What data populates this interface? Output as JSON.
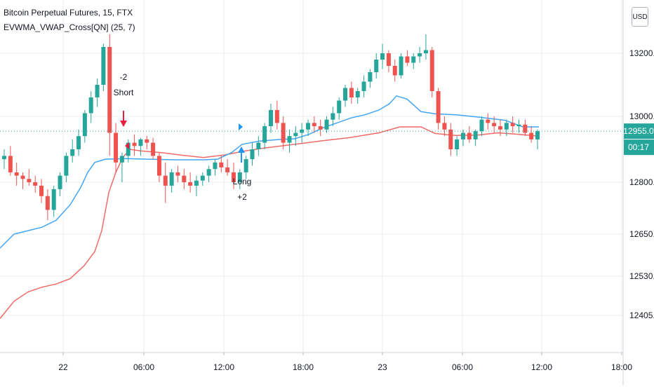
{
  "header": {
    "symbol_line": "Bitcoin Perpetual Futures, 15, FTX",
    "indicator_line": "EVWMA_VWAP_Cross[QN] (25, 7)"
  },
  "price_axis": {
    "currency_button": "USD",
    "last_price": "12955.0",
    "countdown": "00:17"
  },
  "annotations": {
    "short_signal": {
      "lines": [
        "-2",
        "Short"
      ],
      "color": "#e91e3e"
    },
    "long_signal": {
      "lines": [
        "Long",
        "+2"
      ],
      "color": "#2196f3"
    }
  },
  "colors": {
    "candle_up": "#26a69a",
    "candle_down": "#ef5350",
    "evwma_line": "#42a5f5",
    "vwap_line": "#f06a66",
    "last_price_badge": "#26a69a",
    "grid": "#e9ecf0"
  },
  "chart_data": {
    "type": "candlestick",
    "title": "Bitcoin Perpetual Futures, 15, FTX",
    "x_tick_labels": [
      "22",
      "06:00",
      "12:00",
      "18:00",
      "23",
      "06:00",
      "12:00",
      "18:00"
    ],
    "y_tick_labels": [
      "13200.0",
      "13000.0",
      "12800.0",
      "12650.0",
      "12530.0",
      "12405.0"
    ],
    "y_tick_values": [
      13200,
      13000,
      12800,
      12650,
      12530,
      12405
    ],
    "last_price": 12955,
    "grid": true,
    "series": [
      {
        "name": "EVWMA",
        "type": "line",
        "points": [
          [
            0,
            12610
          ],
          [
            20,
            12650
          ],
          [
            40,
            12660
          ],
          [
            60,
            12670
          ],
          [
            80,
            12690
          ],
          [
            100,
            12735
          ],
          [
            115,
            12785
          ],
          [
            125,
            12830
          ],
          [
            135,
            12860
          ],
          [
            150,
            12870
          ],
          [
            180,
            12872
          ],
          [
            210,
            12870
          ],
          [
            250,
            12868
          ],
          [
            290,
            12868
          ],
          [
            310,
            12870
          ],
          [
            330,
            12890
          ],
          [
            345,
            12915
          ],
          [
            370,
            12925
          ],
          [
            400,
            12930
          ],
          [
            420,
            12932
          ],
          [
            440,
            12945
          ],
          [
            460,
            12965
          ],
          [
            480,
            12980
          ],
          [
            500,
            12995
          ],
          [
            520,
            13005
          ],
          [
            540,
            13020
          ],
          [
            555,
            13040
          ],
          [
            565,
            13065
          ],
          [
            580,
            13055
          ],
          [
            600,
            13015
          ],
          [
            620,
            13008
          ],
          [
            650,
            13005
          ],
          [
            680,
            12998
          ],
          [
            700,
            12993
          ],
          [
            720,
            12988
          ],
          [
            745,
            12968
          ],
          [
            768,
            12968
          ]
        ]
      },
      {
        "name": "VWAP",
        "type": "line",
        "points": [
          [
            0,
            12395
          ],
          [
            20,
            12450
          ],
          [
            40,
            12480
          ],
          [
            60,
            12495
          ],
          [
            80,
            12505
          ],
          [
            100,
            12522
          ],
          [
            120,
            12560
          ],
          [
            135,
            12600
          ],
          [
            145,
            12660
          ],
          [
            155,
            12770
          ],
          [
            165,
            12830
          ],
          [
            175,
            12875
          ],
          [
            185,
            12900
          ],
          [
            200,
            12895
          ],
          [
            230,
            12890
          ],
          [
            260,
            12882
          ],
          [
            290,
            12875
          ],
          [
            320,
            12883
          ],
          [
            350,
            12895
          ],
          [
            380,
            12905
          ],
          [
            420,
            12915
          ],
          [
            460,
            12926
          ],
          [
            500,
            12936
          ],
          [
            540,
            12950
          ],
          [
            570,
            12968
          ],
          [
            600,
            12968
          ],
          [
            620,
            12948
          ],
          [
            650,
            12942
          ],
          [
            680,
            12943
          ],
          [
            710,
            12950
          ],
          [
            740,
            12945
          ],
          [
            768,
            12940
          ]
        ]
      },
      {
        "name": "Price",
        "type": "candlestick",
        "open_high_low_close": [
          [
            12870,
            12900,
            12840,
            12880
          ],
          [
            12880,
            12910,
            12820,
            12830
          ],
          [
            12830,
            12860,
            12790,
            12820
          ],
          [
            12820,
            12830,
            12780,
            12810
          ],
          [
            12810,
            12840,
            12790,
            12800
          ],
          [
            12800,
            12820,
            12770,
            12790
          ],
          [
            12790,
            12810,
            12740,
            12760
          ],
          [
            12760,
            12780,
            12690,
            12720
          ],
          [
            12720,
            12790,
            12700,
            12780
          ],
          [
            12780,
            12830,
            12760,
            12820
          ],
          [
            12820,
            12890,
            12800,
            12880
          ],
          [
            12880,
            12930,
            12860,
            12900
          ],
          [
            12900,
            12960,
            12880,
            12940
          ],
          [
            12940,
            13020,
            12920,
            13010
          ],
          [
            13010,
            13080,
            12980,
            13060
          ],
          [
            13060,
            13120,
            13030,
            13100
          ],
          [
            13100,
            13230,
            13080,
            13220
          ],
          [
            13220,
            13260,
            12880,
            12950
          ],
          [
            12950,
            12980,
            12830,
            12860
          ],
          [
            12860,
            12890,
            12800,
            12880
          ],
          [
            12880,
            12930,
            12860,
            12920
          ],
          [
            12920,
            12945,
            12880,
            12910
          ],
          [
            12910,
            12935,
            12880,
            12930
          ],
          [
            12930,
            12940,
            12900,
            12920
          ],
          [
            12920,
            12935,
            12870,
            12880
          ],
          [
            12880,
            12890,
            12800,
            12820
          ],
          [
            12820,
            12860,
            12740,
            12790
          ],
          [
            12790,
            12840,
            12770,
            12830
          ],
          [
            12830,
            12850,
            12800,
            12820
          ],
          [
            12820,
            12840,
            12780,
            12800
          ],
          [
            12800,
            12830,
            12770,
            12790
          ],
          [
            12790,
            12820,
            12760,
            12805
          ],
          [
            12805,
            12830,
            12790,
            12820
          ],
          [
            12820,
            12850,
            12800,
            12840
          ],
          [
            12840,
            12870,
            12820,
            12860
          ],
          [
            12860,
            12880,
            12830,
            12845
          ],
          [
            12845,
            12870,
            12820,
            12830
          ],
          [
            12830,
            12860,
            12780,
            12800
          ],
          [
            12800,
            12840,
            12780,
            12830
          ],
          [
            12830,
            12880,
            12810,
            12870
          ],
          [
            12870,
            12920,
            12850,
            12900
          ],
          [
            12900,
            12940,
            12880,
            12920
          ],
          [
            12920,
            12980,
            12900,
            12970
          ],
          [
            12970,
            13040,
            12950,
            13020
          ],
          [
            13020,
            13050,
            12960,
            12980
          ],
          [
            12980,
            13000,
            12900,
            12920
          ],
          [
            12920,
            12960,
            12890,
            12940
          ],
          [
            12940,
            12970,
            12910,
            12950
          ],
          [
            12950,
            12980,
            12920,
            12960
          ],
          [
            12960,
            12990,
            12940,
            12980
          ],
          [
            12980,
            13000,
            12950,
            12970
          ],
          [
            12970,
            12990,
            12940,
            12960
          ],
          [
            12960,
            13000,
            12950,
            12990
          ],
          [
            12990,
            13030,
            12970,
            13010
          ],
          [
            13010,
            13060,
            12990,
            13050
          ],
          [
            13050,
            13100,
            13030,
            13090
          ],
          [
            13090,
            13110,
            13040,
            13060
          ],
          [
            13060,
            13090,
            13040,
            13080
          ],
          [
            13080,
            13130,
            13060,
            13110
          ],
          [
            13110,
            13150,
            13090,
            13140
          ],
          [
            13140,
            13200,
            13120,
            13180
          ],
          [
            13180,
            13230,
            13150,
            13200
          ],
          [
            13200,
            13210,
            13140,
            13160
          ],
          [
            13160,
            13180,
            13110,
            13130
          ],
          [
            13130,
            13200,
            13120,
            13190
          ],
          [
            13190,
            13210,
            13160,
            13170
          ],
          [
            13170,
            13200,
            13150,
            13190
          ],
          [
            13190,
            13220,
            13170,
            13200
          ],
          [
            13200,
            13260,
            13180,
            13210
          ],
          [
            13210,
            13220,
            13060,
            13080
          ],
          [
            13080,
            13090,
            12960,
            12980
          ],
          [
            12980,
            13000,
            12940,
            12960
          ],
          [
            12960,
            12980,
            12880,
            12900
          ],
          [
            12900,
            12940,
            12880,
            12930
          ],
          [
            12930,
            12960,
            12910,
            12950
          ],
          [
            12950,
            12970,
            12920,
            12930
          ],
          [
            12930,
            12960,
            12910,
            12955
          ],
          [
            12955,
            13000,
            12940,
            12990
          ],
          [
            12990,
            13010,
            12960,
            12980
          ],
          [
            12980,
            13000,
            12950,
            12970
          ],
          [
            12970,
            12990,
            12940,
            12960
          ],
          [
            12960,
            12990,
            12940,
            12980
          ],
          [
            12980,
            13000,
            12950,
            12970
          ],
          [
            12970,
            12990,
            12950,
            12975
          ],
          [
            12975,
            12990,
            12940,
            12950
          ],
          [
            12950,
            12970,
            12920,
            12930
          ],
          [
            12930,
            12960,
            12900,
            12955
          ]
        ]
      }
    ]
  }
}
